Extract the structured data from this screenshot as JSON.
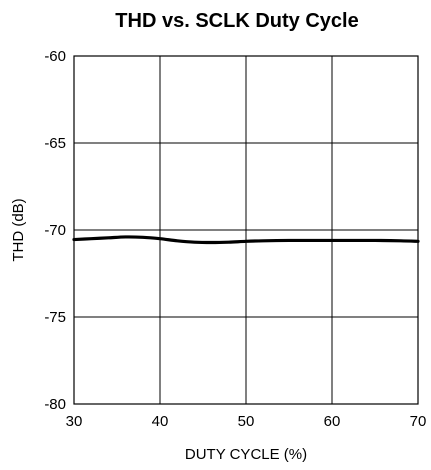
{
  "chart_data": {
    "type": "line",
    "title": "THD vs. SCLK Duty Cycle",
    "xlabel": "DUTY CYCLE (%)",
    "ylabel": "THD (dB)",
    "xlim": [
      30,
      70
    ],
    "ylim": [
      -80,
      -60
    ],
    "xticks": [
      30,
      40,
      50,
      60,
      70
    ],
    "yticks": [
      -60,
      -65,
      -70,
      -75,
      -80
    ],
    "grid": true,
    "series": [
      {
        "x": [
          30,
          32,
          34,
          36,
          38,
          40,
          42,
          44,
          46,
          48,
          50,
          52,
          55,
          60,
          65,
          68,
          70
        ],
        "y": [
          -70.55,
          -70.5,
          -70.45,
          -70.4,
          -70.42,
          -70.5,
          -70.62,
          -70.7,
          -70.72,
          -70.7,
          -70.65,
          -70.62,
          -70.6,
          -70.6,
          -70.6,
          -70.62,
          -70.65
        ]
      }
    ],
    "colors": {
      "line": "#000000",
      "grid": "#000000",
      "background": "#ffffff"
    }
  }
}
